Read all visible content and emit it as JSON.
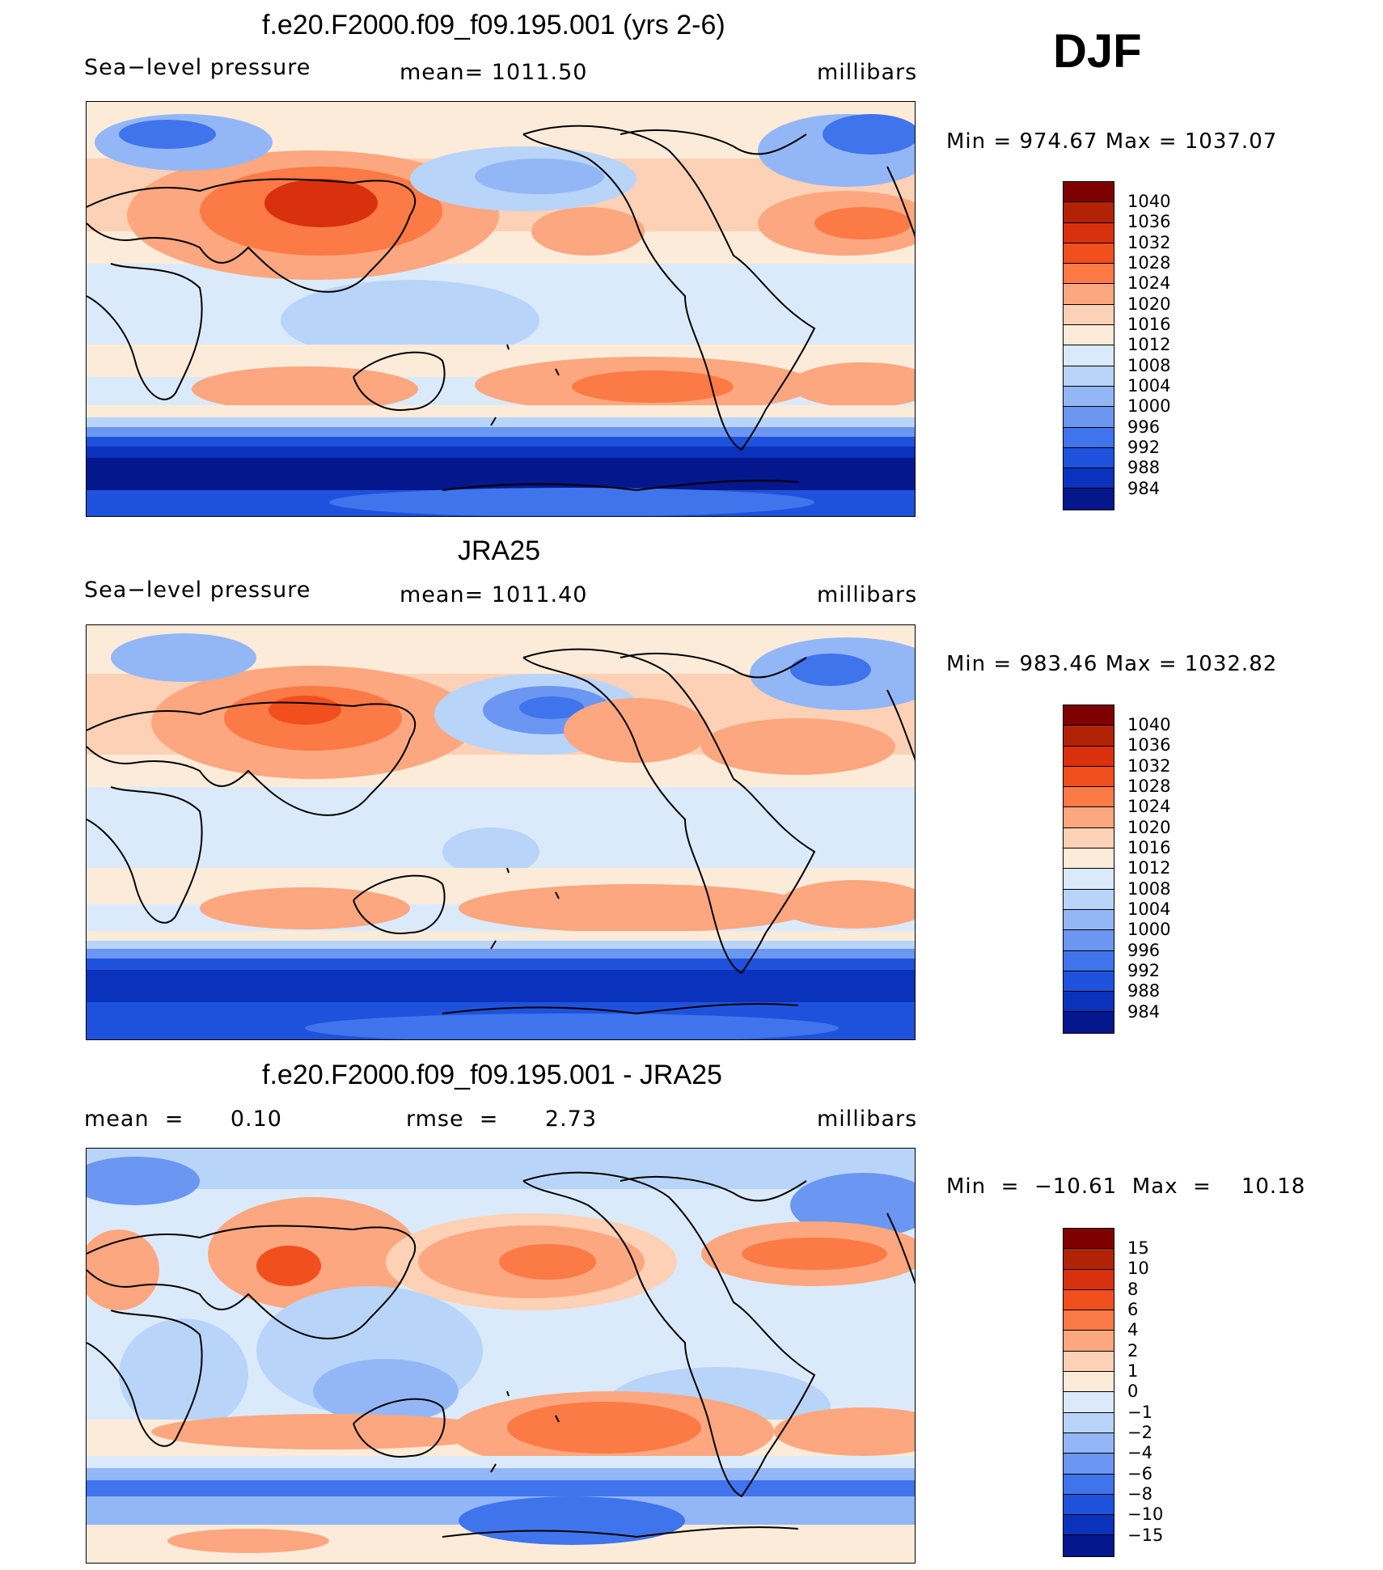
{
  "season": "DJF",
  "units": "millibars",
  "panels": [
    {
      "title": "f.e20.F2000.f09_f09.195.001 (yrs 2-6)",
      "left_label": "Sea−level pressure",
      "center_label": "mean=  1011.50",
      "right_label": "millibars",
      "minmax": "Min  =  974.67  Max  =  1037.07",
      "colorbar_labels": [
        "1040",
        "1036",
        "1032",
        "1028",
        "1024",
        "1020",
        "1016",
        "1012",
        "1008",
        "1004",
        "1000",
        "996",
        "992",
        "988",
        "984"
      ]
    },
    {
      "title": "JRA25",
      "left_label": "Sea−level pressure",
      "center_label": "mean=  1011.40",
      "right_label": "millibars",
      "minmax": "Min  =  983.46  Max  =  1032.82",
      "colorbar_labels": [
        "1040",
        "1036",
        "1032",
        "1028",
        "1024",
        "1020",
        "1016",
        "1012",
        "1008",
        "1004",
        "1000",
        "996",
        "992",
        "988",
        "984"
      ]
    },
    {
      "title": "f.e20.F2000.f09_f09.195.001 - JRA25",
      "left_label": "mean  =      0.10",
      "center_label": "rmse  =      2.73",
      "right_label": "millibars",
      "minmax": "Min  =  −10.61  Max  =    10.18",
      "colorbar_labels": [
        "15",
        "10",
        "8",
        "6",
        "4",
        "2",
        "1",
        "0",
        "−1",
        "−2",
        "−4",
        "−6",
        "−8",
        "−10",
        "−15"
      ]
    }
  ],
  "colors": {
    "scale": [
      "#7f0000",
      "#b22207",
      "#d9300d",
      "#f24f1e",
      "#fb7a45",
      "#fca77f",
      "#fdd1b5",
      "#fdebd9",
      "#dbeafb",
      "#b9d4f9",
      "#93b7f6",
      "#6b96f1",
      "#4074ec",
      "#1f52dc",
      "#0b32bd",
      "#04178c"
    ],
    "coastline": "#000000"
  }
}
